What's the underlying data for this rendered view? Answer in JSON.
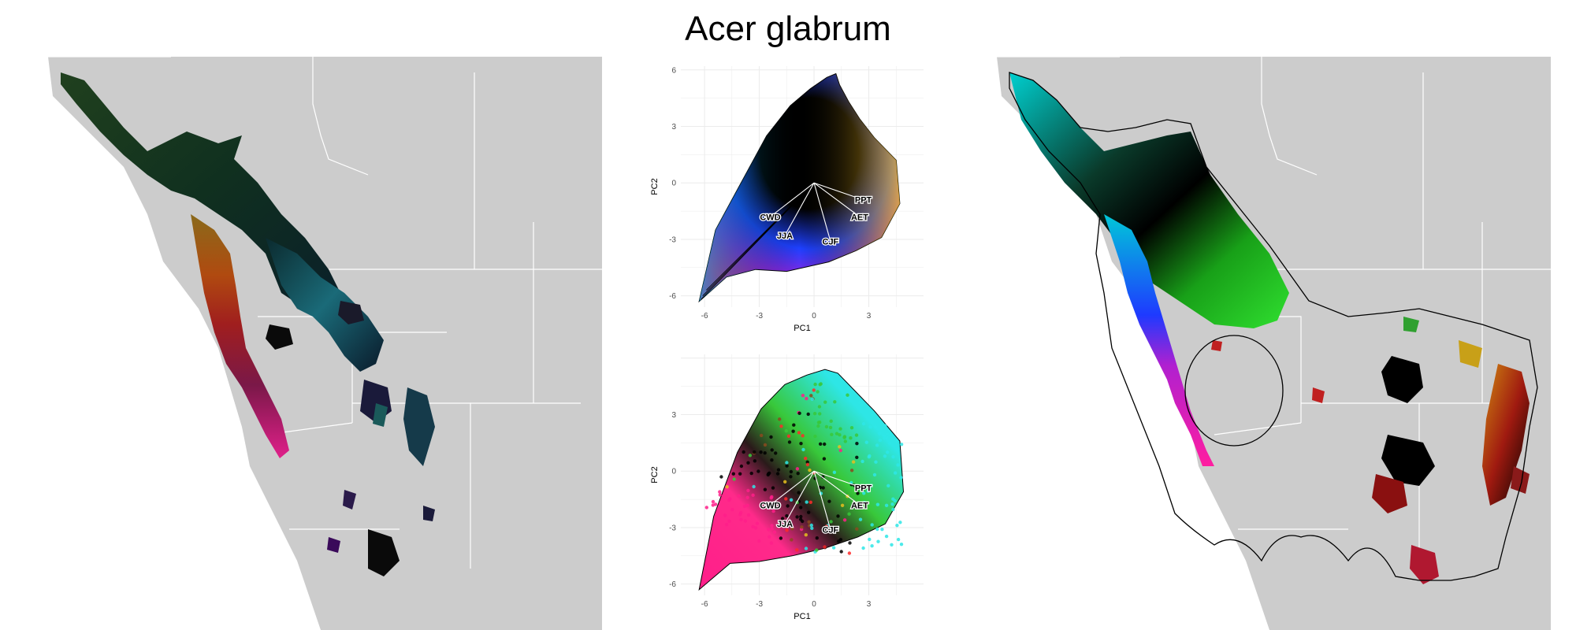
{
  "figure": {
    "title": "Acer glabrum"
  },
  "map_style": {
    "land_color": "#cccccc",
    "border_color": "#ffffff",
    "water_color": "#ffffff",
    "range_outline_color": "#000000"
  },
  "chart_data": [
    {
      "type": "scatter",
      "panel": "pca-top",
      "title": "",
      "xlabel": "PC1",
      "ylabel": "PC2",
      "xlim": [
        -7.3,
        6.0
      ],
      "ylim": [
        -6.6,
        6.2
      ],
      "x_ticks": [
        "-6",
        "-3",
        "0",
        "3"
      ],
      "y_ticks": [
        "-6",
        "-3",
        "0",
        "3",
        "6"
      ],
      "grid": true,
      "vectors": [
        {
          "label": "PPT",
          "x": 2.7,
          "y": -0.9
        },
        {
          "label": "AET",
          "x": 2.5,
          "y": -1.8
        },
        {
          "label": "CWD",
          "x": -2.4,
          "y": -1.8
        },
        {
          "label": "JJA",
          "x": -1.6,
          "y": -2.8
        },
        {
          "label": "CJF",
          "x": 0.9,
          "y": -3.1
        }
      ],
      "long_vectors": [
        {
          "x": -6.2,
          "y": -6.2
        },
        {
          "x": -6.1,
          "y": -6.0
        },
        {
          "x": -5.9,
          "y": -5.7
        }
      ],
      "hull": [
        [
          -6.3,
          -6.3
        ],
        [
          -4.8,
          -5.0
        ],
        [
          -3.2,
          -4.6
        ],
        [
          -1.5,
          -4.7
        ],
        [
          0.8,
          -4.2
        ],
        [
          2.3,
          -3.6
        ],
        [
          3.7,
          -2.9
        ],
        [
          4.7,
          -1.1
        ],
        [
          4.5,
          1.2
        ],
        [
          3.3,
          2.4
        ],
        [
          2.5,
          3.4
        ],
        [
          1.9,
          4.3
        ],
        [
          1.4,
          5.2
        ],
        [
          1.2,
          5.8
        ],
        [
          0.7,
          5.6
        ],
        [
          -0.2,
          5.0
        ],
        [
          -1.3,
          4.1
        ],
        [
          -2.6,
          2.5
        ],
        [
          -4.0,
          0.0
        ],
        [
          -5.4,
          -2.5
        ],
        [
          -6.3,
          -6.3
        ]
      ],
      "color_encoding": "continuous RGB gradient",
      "colors": [
        "#000000",
        "#00a8d8",
        "#1e40ff",
        "#9a22e0",
        "#ff1e8a",
        "#ff2a2a",
        "#ffc31e",
        "#1ed04e"
      ]
    },
    {
      "type": "scatter",
      "panel": "pca-bottom",
      "title": "",
      "xlabel": "PC1",
      "ylabel": "PC2",
      "xlim": [
        -7.3,
        6.0
      ],
      "ylim": [
        -6.6,
        6.2
      ],
      "x_ticks": [
        "-6",
        "-3",
        "0",
        "3"
      ],
      "y_ticks": [
        "-6",
        "-3",
        "0",
        "3"
      ],
      "grid": true,
      "vectors": [
        {
          "label": "PPT",
          "x": 2.7,
          "y": -0.9
        },
        {
          "label": "AET",
          "x": 2.5,
          "y": -1.8
        },
        {
          "label": "CWD",
          "x": -2.4,
          "y": -1.8
        },
        {
          "label": "JJA",
          "x": -1.6,
          "y": -2.8
        },
        {
          "label": "CJF",
          "x": 0.9,
          "y": -3.1
        }
      ],
      "hull": [
        [
          -6.3,
          -6.3
        ],
        [
          -4.6,
          -4.9
        ],
        [
          -3.0,
          -4.8
        ],
        [
          -1.2,
          -4.5
        ],
        [
          0.6,
          -4.1
        ],
        [
          2.4,
          -3.5
        ],
        [
          3.9,
          -2.8
        ],
        [
          4.9,
          -1.1
        ],
        [
          4.7,
          1.6
        ],
        [
          3.3,
          3.2
        ],
        [
          2.2,
          4.3
        ],
        [
          1.3,
          5.2
        ],
        [
          0.6,
          5.4
        ],
        [
          -0.4,
          5.1
        ],
        [
          -1.6,
          4.6
        ],
        [
          -2.9,
          3.3
        ],
        [
          -4.2,
          1.0
        ],
        [
          -5.5,
          -2.4
        ],
        [
          -6.3,
          -6.3
        ]
      ],
      "color_encoding": "points colored by map cluster",
      "colors": [
        "#000000",
        "#2ee6e6",
        "#38c83a",
        "#8a4a1e",
        "#ff1e8a",
        "#ff2a2a",
        "#e6c01e"
      ]
    }
  ]
}
